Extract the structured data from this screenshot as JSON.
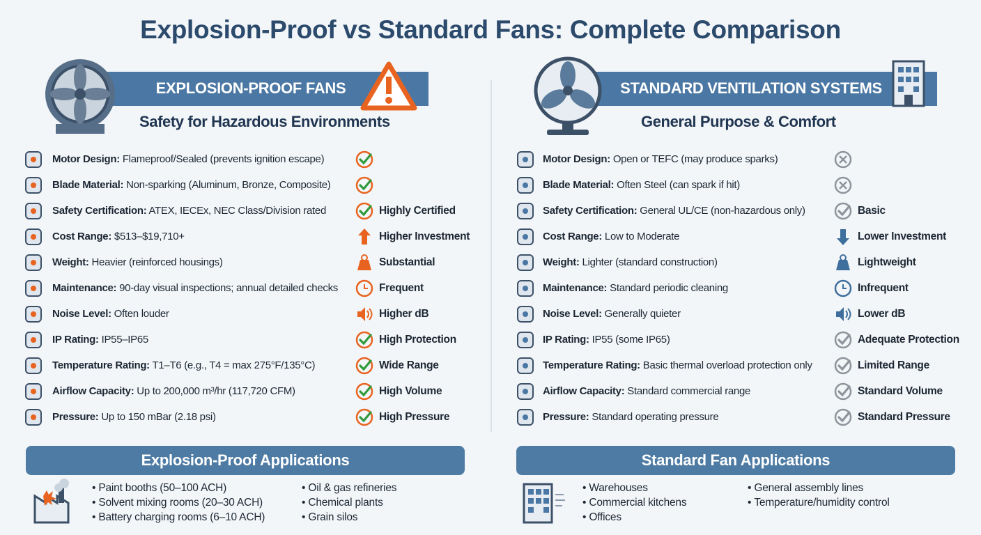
{
  "title": "Explosion-Proof vs Standard Fans: Complete Comparison",
  "panels": [
    {
      "heading": "EXPLOSION-PROOF FANS",
      "subheading": "Safety for Hazardous Environments",
      "rows": [
        {
          "label": "Motor Design:",
          "text": "Flameproof/Sealed (prevents ignition escape)"
        },
        {
          "label": "Blade Material:",
          "text": "Non-sparking (Aluminum, Bronze, Composite)"
        },
        {
          "label": "Safety Certification:",
          "text": "ATEX, IECEx, NEC Class/Division rated",
          "badge": "Highly Certified"
        },
        {
          "label": "Cost Range:",
          "text": "$513–$19,710+",
          "badge": "Higher Investment"
        },
        {
          "label": "Weight:",
          "text": "Heavier (reinforced housings)",
          "badge": "Substantial"
        },
        {
          "label": "Maintenance:",
          "text": "90-day visual inspections; annual detailed checks",
          "badge": "Frequent"
        },
        {
          "label": "Noise Level:",
          "text": "Often louder",
          "badge": "Higher dB"
        },
        {
          "label": "IP Rating:",
          "text": "IP55–IP65",
          "badge": "High Protection"
        },
        {
          "label": "Temperature Rating:",
          "text": "T1–T6 (e.g., T4 = max 275°F/135°C)",
          "badge": "Wide Range"
        },
        {
          "label": "Airflow Capacity:",
          "text": "Up to 200,000 m³/hr (117,720 CFM)",
          "badge": "High Volume"
        },
        {
          "label": "Pressure:",
          "text": "Up to 150 mBar (2.18 psi)",
          "badge": "High Pressure"
        }
      ],
      "applications": {
        "heading": "Explosion-Proof Applications",
        "columns": [
          [
            "Paint booths (50–100 ACH)",
            "Solvent mixing rooms (20–30 ACH)",
            "Battery charging rooms (6–10 ACH)"
          ],
          [
            "Oil & gas refineries",
            "Chemical plants",
            "Grain silos"
          ]
        ]
      }
    },
    {
      "heading": "STANDARD VENTILATION SYSTEMS",
      "subheading": "General Purpose & Comfort",
      "rows": [
        {
          "label": "Motor Design:",
          "text": "Open or TEFC (may produce sparks)"
        },
        {
          "label": "Blade Material:",
          "text": "Often Steel (can spark if hit)"
        },
        {
          "label": "Safety Certification:",
          "text": "General UL/CE (non-hazardous only)",
          "badge": "Basic"
        },
        {
          "label": "Cost Range:",
          "text": "Low to Moderate",
          "badge": "Lower Investment"
        },
        {
          "label": "Weight:",
          "text": "Lighter (standard construction)",
          "badge": "Lightweight"
        },
        {
          "label": "Maintenance:",
          "text": "Standard periodic cleaning",
          "badge": "Infrequent"
        },
        {
          "label": "Noise Level:",
          "text": "Generally quieter",
          "badge": "Lower dB"
        },
        {
          "label": "IP Rating:",
          "text": "IP55 (some IP65)",
          "badge": "Adequate Protection"
        },
        {
          "label": "Temperature Rating:",
          "text": "Basic thermal overload protection only",
          "badge": "Limited Range"
        },
        {
          "label": "Airflow Capacity:",
          "text": "Standard commercial range",
          "badge": "Standard Volume"
        },
        {
          "label": "Pressure:",
          "text": "Standard operating pressure",
          "badge": "Standard Pressure"
        }
      ],
      "applications": {
        "heading": "Standard Fan Applications",
        "columns": [
          [
            "Warehouses",
            "Commercial kitchens",
            "Offices"
          ],
          [
            "General assembly lines",
            "Temperature/humidity control"
          ]
        ]
      }
    }
  ]
}
